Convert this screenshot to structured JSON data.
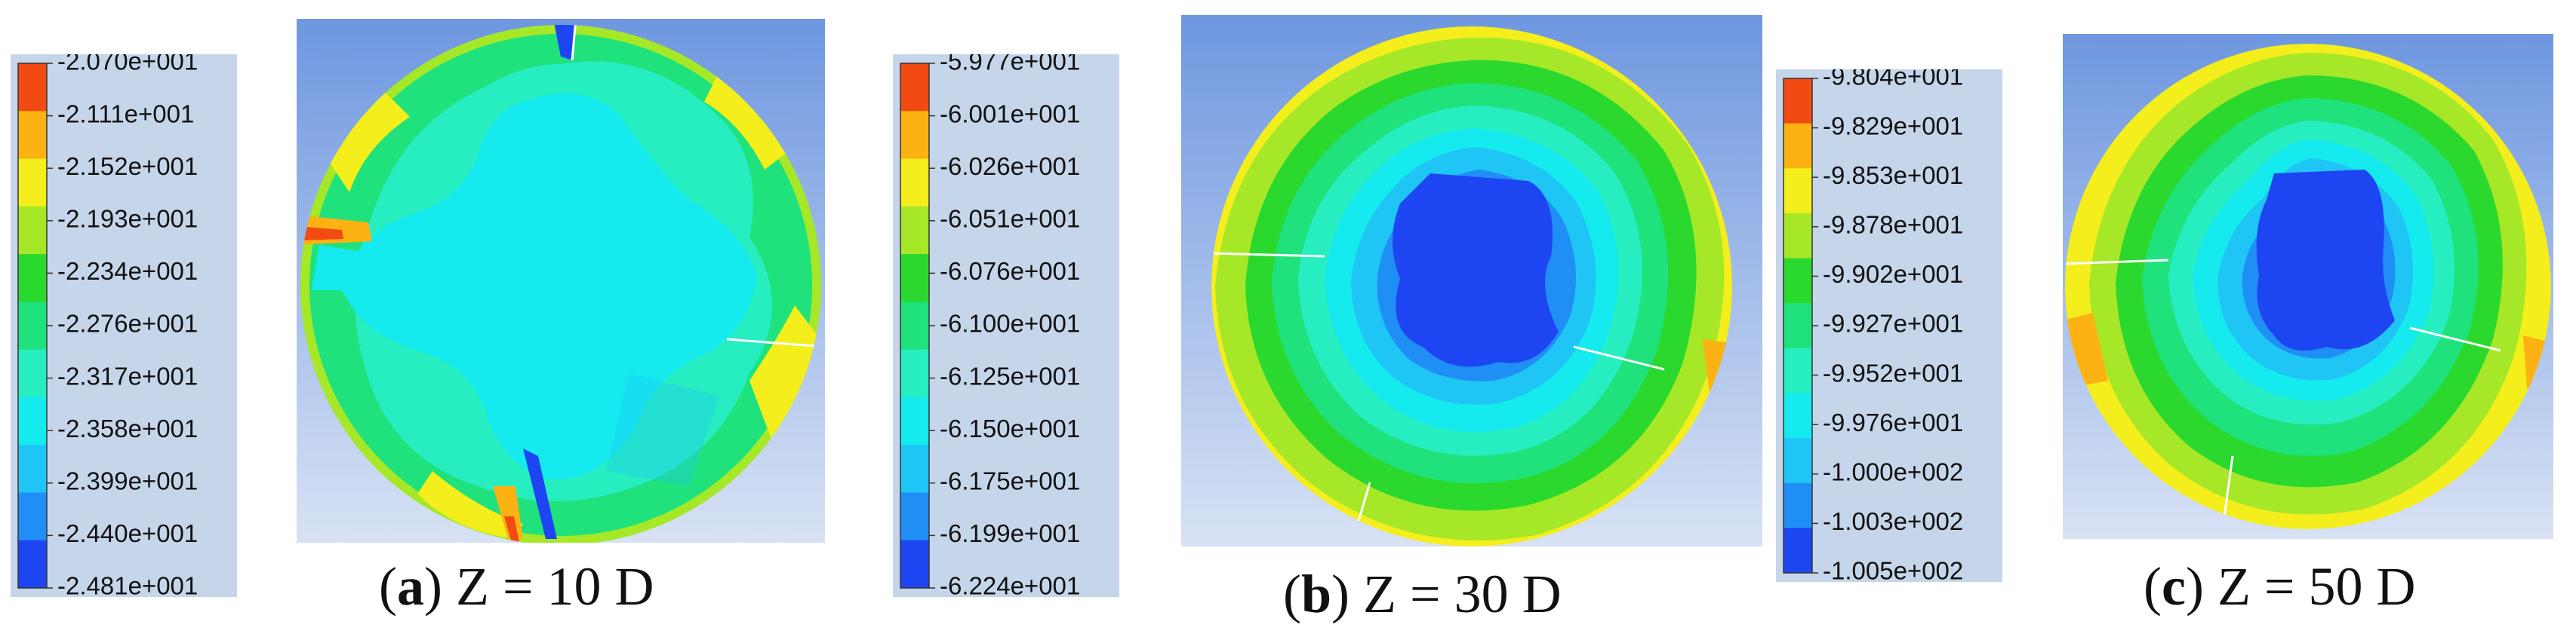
{
  "colors": {
    "scale": [
      "#1d46f2",
      "#1f8ff5",
      "#1fc6f5",
      "#15ebee",
      "#26eec1",
      "#1fe27c",
      "#2bd82e",
      "#a6e827",
      "#f4ee1d",
      "#fbb212",
      "#f24a13"
    ],
    "plot_bg_top": "#6e97e0",
    "plot_bg_bottom": "#d8e2f4",
    "legend_bg": "#c6d6ea"
  },
  "panels": [
    {
      "id": "a",
      "caption_letter": "a",
      "caption_text": "Z = 10 D",
      "legend_ticks": [
        "-2.070e+001",
        "-2.111e+001",
        "-2.152e+001",
        "-2.193e+001",
        "-2.234e+001",
        "-2.276e+001",
        "-2.317e+001",
        "-2.358e+001",
        "-2.399e+001",
        "-2.440e+001",
        "-2.481e+001"
      ]
    },
    {
      "id": "b",
      "caption_letter": "b",
      "caption_text": "Z = 30 D",
      "legend_ticks": [
        "-5.977e+001",
        "-6.001e+001",
        "-6.026e+001",
        "-6.051e+001",
        "-6.076e+001",
        "-6.100e+001",
        "-6.125e+001",
        "-6.150e+001",
        "-6.175e+001",
        "-6.199e+001",
        "-6.224e+001"
      ]
    },
    {
      "id": "c",
      "caption_letter": "c",
      "caption_text": "Z = 50 D",
      "legend_ticks": [
        "-9.804e+001",
        "-9.829e+001",
        "-9.853e+001",
        "-9.878e+001",
        "-9.902e+001",
        "-9.927e+001",
        "-9.952e+001",
        "-9.976e+001",
        "-1.000e+002",
        "-1.003e+002",
        "-1.005e+002"
      ]
    }
  ]
}
